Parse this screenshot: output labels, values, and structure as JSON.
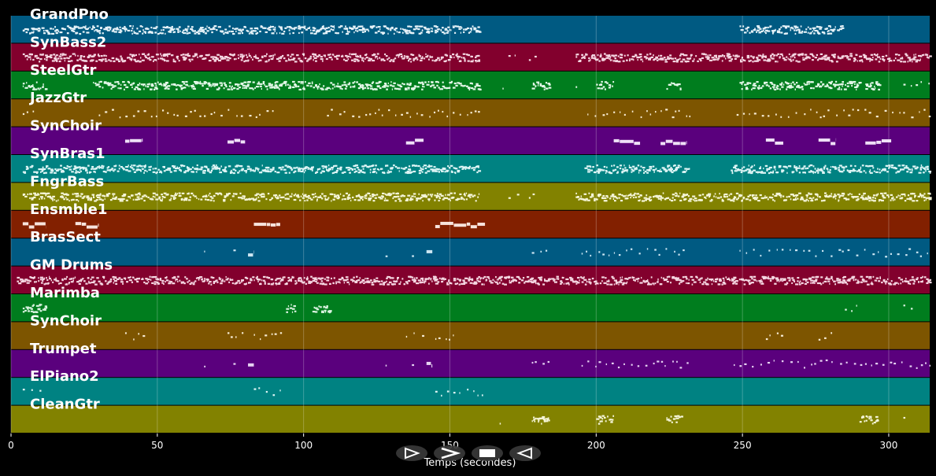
{
  "player": {
    "xlabel": "Temps (secondes)",
    "x_range": [
      0,
      314
    ],
    "x_ticks": [
      0,
      50,
      100,
      150,
      200,
      250,
      300
    ],
    "controls": [
      {
        "name": "play-button",
        "icon": "play-icon"
      },
      {
        "name": "fast-forward-button",
        "icon": "fast-forward-icon"
      },
      {
        "name": "stop-button",
        "icon": "stop-icon"
      },
      {
        "name": "rewind-button",
        "icon": "rewind-icon"
      }
    ]
  },
  "tracks": [
    {
      "name": "GrandPno",
      "color": "#005a82",
      "note_color": "#e6f2f8",
      "segments": [
        [
          4,
          160,
          "dense"
        ],
        [
          249,
          284,
          "dense"
        ]
      ]
    },
    {
      "name": "SynBass2",
      "color": "#82002d",
      "note_color": "#f5d7e2",
      "segments": [
        [
          4,
          160,
          "dense"
        ],
        [
          170,
          173,
          "sparse"
        ],
        [
          177,
          180,
          "sparse"
        ],
        [
          193,
          314,
          "dense"
        ]
      ]
    },
    {
      "name": "SteelGtr",
      "color": "#007d1e",
      "note_color": "#e3f7e8",
      "segments": [
        [
          4,
          12,
          "dense"
        ],
        [
          28,
          160,
          "dense"
        ],
        [
          168,
          169,
          "sparse"
        ],
        [
          178,
          184,
          "dense"
        ],
        [
          193,
          195,
          "sparse"
        ],
        [
          200,
          206,
          "dense"
        ],
        [
          224,
          229,
          "dense"
        ],
        [
          249,
          290,
          "dense"
        ],
        [
          292,
          297,
          "dense"
        ],
        [
          305,
          314,
          "sparse"
        ]
      ]
    },
    {
      "name": "JazzGtr",
      "color": "#7d5500",
      "note_color": "#f7ecd4",
      "segments": [
        [
          4,
          10,
          "sparse"
        ],
        [
          30,
          92,
          "sparse"
        ],
        [
          108,
          160,
          "sparse"
        ],
        [
          197,
          232,
          "sparse"
        ],
        [
          248,
          314,
          "sparse"
        ]
      ]
    },
    {
      "name": "SynChoir",
      "color": "#5a007d",
      "note_color": "#efe0f7",
      "segments": [
        [
          39,
          45,
          "block"
        ],
        [
          74,
          80,
          "block"
        ],
        [
          135,
          141,
          "block"
        ],
        [
          206,
          215,
          "block"
        ],
        [
          222,
          231,
          "block"
        ],
        [
          258,
          264,
          "block"
        ],
        [
          276,
          282,
          "block"
        ],
        [
          292,
          301,
          "block"
        ]
      ]
    },
    {
      "name": "SynBras1",
      "color": "#008282",
      "note_color": "#def5f5",
      "segments": [
        [
          4,
          160,
          "dense"
        ],
        [
          196,
          232,
          "dense"
        ],
        [
          246,
          314,
          "dense"
        ]
      ]
    },
    {
      "name": "FngrBass",
      "color": "#828200",
      "note_color": "#f5f5d8",
      "segments": [
        [
          4,
          160,
          "dense"
        ],
        [
          170,
          173,
          "sparse"
        ],
        [
          177,
          180,
          "sparse"
        ],
        [
          193,
          314,
          "dense"
        ]
      ]
    },
    {
      "name": "Ensmble1",
      "color": "#822000",
      "note_color": "#f7e3dc",
      "segments": [
        [
          4,
          12,
          "block"
        ],
        [
          22,
          30,
          "block"
        ],
        [
          83,
          92,
          "block"
        ],
        [
          145,
          162,
          "block"
        ]
      ]
    },
    {
      "name": "BrasSect",
      "color": "#005a82",
      "note_color": "#cce6f2",
      "segments": [
        [
          66,
          67,
          "sparse"
        ],
        [
          76,
          77,
          "sparse"
        ],
        [
          81,
          83,
          "block"
        ],
        [
          128,
          129,
          "sparse"
        ],
        [
          137,
          138,
          "sparse"
        ],
        [
          142,
          144,
          "block"
        ],
        [
          178,
          184,
          "sparse"
        ],
        [
          195,
          232,
          "sparse"
        ],
        [
          249,
          314,
          "sparse"
        ]
      ]
    },
    {
      "name": "GM Drums",
      "color": "#82002d",
      "note_color": "#f5d7e2",
      "segments": [
        [
          2,
          314,
          "dense"
        ]
      ]
    },
    {
      "name": "Marimba",
      "color": "#007d1e",
      "note_color": "#d8f2df",
      "segments": [
        [
          4,
          12,
          "dense"
        ],
        [
          94,
          97,
          "dense"
        ],
        [
          103,
          109,
          "dense"
        ],
        [
          285,
          290,
          "sparse"
        ],
        [
          305,
          308,
          "sparse"
        ]
      ]
    },
    {
      "name": "SynChoir",
      "color": "#7d5500",
      "note_color": "#f7ecd4",
      "segments": [
        [
          39,
          45,
          "sparse"
        ],
        [
          74,
          80,
          "sparse"
        ],
        [
          83,
          92,
          "sparse"
        ],
        [
          135,
          141,
          "sparse"
        ],
        [
          145,
          152,
          "sparse"
        ],
        [
          258,
          264,
          "sparse"
        ],
        [
          276,
          282,
          "sparse"
        ]
      ]
    },
    {
      "name": "Trumpet",
      "color": "#5a007d",
      "note_color": "#e6d2f2",
      "segments": [
        [
          66,
          67,
          "sparse"
        ],
        [
          76,
          77,
          "sparse"
        ],
        [
          81,
          83,
          "block"
        ],
        [
          128,
          129,
          "sparse"
        ],
        [
          137,
          138,
          "sparse"
        ],
        [
          142,
          144,
          "block"
        ],
        [
          178,
          184,
          "sparse"
        ],
        [
          195,
          232,
          "sparse"
        ],
        [
          247,
          314,
          "sparse"
        ]
      ]
    },
    {
      "name": "ElPiano2",
      "color": "#008282",
      "note_color": "#def5f5",
      "segments": [
        [
          4,
          12,
          "sparse"
        ],
        [
          83,
          92,
          "sparse"
        ],
        [
          145,
          162,
          "sparse"
        ]
      ]
    },
    {
      "name": "CleanGtr",
      "color": "#828200",
      "note_color": "#f5f5d8",
      "segments": [
        [
          167,
          168,
          "sparse"
        ],
        [
          178,
          184,
          "dense"
        ],
        [
          200,
          206,
          "dense"
        ],
        [
          224,
          229,
          "dense"
        ],
        [
          290,
          296,
          "dense"
        ],
        [
          305,
          306,
          "sparse"
        ]
      ]
    }
  ]
}
